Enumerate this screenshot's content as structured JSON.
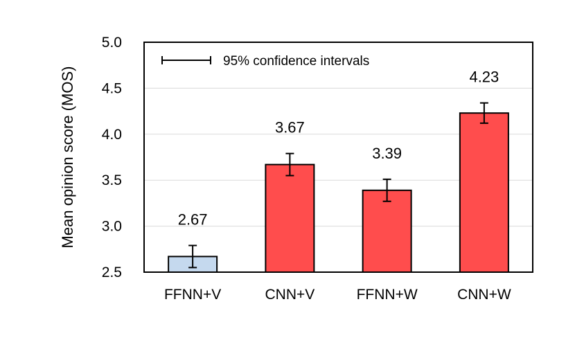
{
  "chart_data": {
    "type": "bar",
    "categories": [
      "FFNN+V",
      "CNN+V",
      "FFNN+W",
      "CNN+W"
    ],
    "values": [
      2.67,
      3.67,
      3.39,
      4.23
    ],
    "value_labels": [
      "2.67",
      "3.67",
      "3.39",
      "4.23"
    ],
    "error_bars": [
      {
        "lower": 2.55,
        "upper": 2.79
      },
      {
        "lower": 3.55,
        "upper": 3.79
      },
      {
        "lower": 3.27,
        "upper": 3.51
      },
      {
        "lower": 4.12,
        "upper": 4.34
      }
    ],
    "bar_colors": [
      "#c5d9ee",
      "#ff4d4d",
      "#ff4d4d",
      "#ff4d4d"
    ],
    "ylabel": "Mean opinion score (MOS)",
    "xlabel": "",
    "ylim": [
      2.5,
      5.0
    ],
    "yticks": [
      "2.5",
      "3.0",
      "3.5",
      "4.0",
      "4.5",
      "5.0"
    ],
    "grid": true,
    "legend": {
      "label": "95% confidence intervals",
      "placement": "top-left"
    }
  }
}
